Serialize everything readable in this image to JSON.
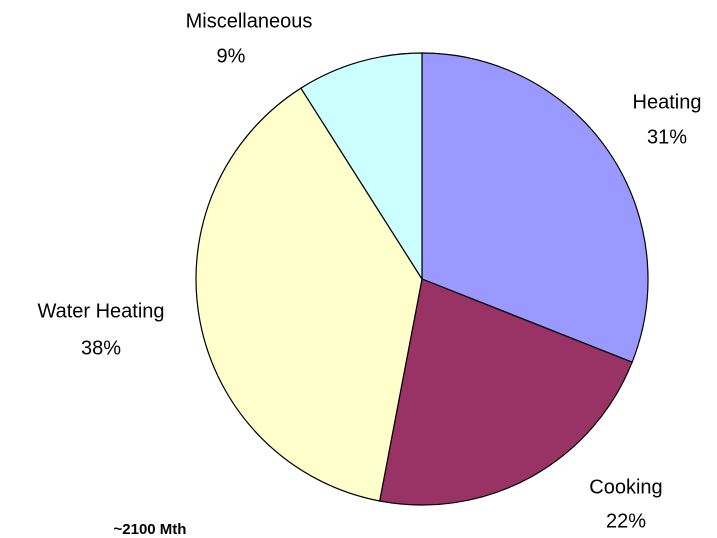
{
  "chart_data": {
    "type": "pie",
    "categories": [
      "Heating",
      "Cooking",
      "Water Heating",
      "Miscellaneous"
    ],
    "values": [
      31,
      22,
      38,
      9
    ],
    "value_labels": [
      "31%",
      "22%",
      "38%",
      "9%"
    ],
    "colors": [
      "#9999ff",
      "#993366",
      "#ffffcc",
      "#ccffff"
    ],
    "annotation": "~2100 Mth"
  }
}
